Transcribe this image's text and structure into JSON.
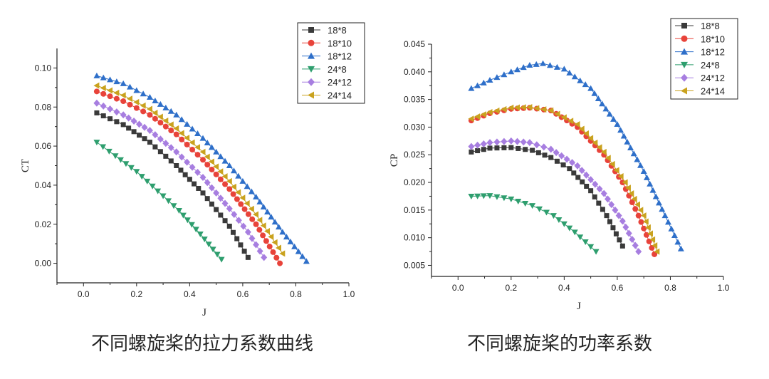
{
  "captions": {
    "left": "不同螺旋桨的拉力系数曲线",
    "right": "不同螺旋桨的功率系数"
  },
  "chart_data": [
    {
      "type": "line",
      "xlabel": "J",
      "ylabel": "CT",
      "xlim": [
        -0.1,
        1.0
      ],
      "ylim": [
        -0.01,
        0.11
      ],
      "xticks": [
        "0.0",
        "0.2",
        "0.4",
        "0.6",
        "0.8",
        "1.0"
      ],
      "yticks": [
        "0.00",
        "0.02",
        "0.04",
        "0.06",
        "0.08",
        "0.10"
      ],
      "legend": "top-right",
      "grid": false,
      "series": [
        {
          "name": "18*8",
          "color": "#3a3a3a",
          "marker": "square",
          "x": [
            0.05,
            0.15,
            0.25,
            0.35,
            0.45,
            0.55,
            0.62
          ],
          "y": [
            0.077,
            0.071,
            0.062,
            0.05,
            0.036,
            0.019,
            0.003
          ]
        },
        {
          "name": "18*10",
          "color": "#e8433a",
          "marker": "circle",
          "x": [
            0.05,
            0.15,
            0.25,
            0.35,
            0.45,
            0.55,
            0.65,
            0.74
          ],
          "y": [
            0.088,
            0.083,
            0.076,
            0.066,
            0.053,
            0.038,
            0.02,
            0.0
          ]
        },
        {
          "name": "18*12",
          "color": "#2e6fc9",
          "marker": "triangle-up",
          "x": [
            0.05,
            0.15,
            0.25,
            0.35,
            0.45,
            0.55,
            0.65,
            0.75,
            0.84
          ],
          "y": [
            0.096,
            0.092,
            0.085,
            0.076,
            0.064,
            0.05,
            0.034,
            0.016,
            0.001
          ]
        },
        {
          "name": "24*8",
          "color": "#2e9e6e",
          "marker": "triangle-down",
          "x": [
            0.05,
            0.12,
            0.2,
            0.28,
            0.36,
            0.44,
            0.52
          ],
          "y": [
            0.062,
            0.055,
            0.047,
            0.037,
            0.027,
            0.015,
            0.002
          ]
        },
        {
          "name": "24*12",
          "color": "#a77ee0",
          "marker": "diamond",
          "x": [
            0.05,
            0.15,
            0.25,
            0.35,
            0.45,
            0.55,
            0.62,
            0.68
          ],
          "y": [
            0.082,
            0.076,
            0.068,
            0.057,
            0.044,
            0.028,
            0.016,
            0.003
          ]
        },
        {
          "name": "24*14",
          "color": "#c9a21e",
          "marker": "triangle-left",
          "x": [
            0.05,
            0.15,
            0.25,
            0.35,
            0.45,
            0.55,
            0.65,
            0.75
          ],
          "y": [
            0.091,
            0.086,
            0.079,
            0.069,
            0.057,
            0.042,
            0.025,
            0.005
          ]
        }
      ]
    },
    {
      "type": "line",
      "xlabel": "J",
      "ylabel": "CP",
      "xlim": [
        -0.1,
        1.0
      ],
      "ylim": [
        0.003,
        0.045
      ],
      "xticks": [
        "0.0",
        "0.2",
        "0.4",
        "0.6",
        "0.8",
        "1.0"
      ],
      "yticks": [
        "0.005",
        "0.010",
        "0.015",
        "0.020",
        "0.025",
        "0.030",
        "0.035",
        "0.040",
        "0.045"
      ],
      "legend": "top-right",
      "grid": false,
      "series": [
        {
          "name": "18*8",
          "color": "#3a3a3a",
          "marker": "square",
          "x": [
            0.05,
            0.12,
            0.2,
            0.28,
            0.35,
            0.42,
            0.5,
            0.56,
            0.62
          ],
          "y": [
            0.0255,
            0.0262,
            0.0263,
            0.0258,
            0.0245,
            0.0225,
            0.0185,
            0.014,
            0.0085
          ]
        },
        {
          "name": "18*10",
          "color": "#e8433a",
          "marker": "circle",
          "x": [
            0.05,
            0.12,
            0.2,
            0.27,
            0.35,
            0.45,
            0.55,
            0.62,
            0.68,
            0.74
          ],
          "y": [
            0.0312,
            0.0325,
            0.0333,
            0.0335,
            0.033,
            0.03,
            0.025,
            0.02,
            0.014,
            0.007
          ]
        },
        {
          "name": "18*12",
          "color": "#2e6fc9",
          "marker": "triangle-up",
          "x": [
            0.05,
            0.12,
            0.2,
            0.27,
            0.32,
            0.4,
            0.5,
            0.6,
            0.7,
            0.78,
            0.84
          ],
          "y": [
            0.037,
            0.0385,
            0.04,
            0.0412,
            0.0415,
            0.0405,
            0.037,
            0.0305,
            0.022,
            0.014,
            0.008
          ]
        },
        {
          "name": "24*8",
          "color": "#2e9e6e",
          "marker": "triangle-down",
          "x": [
            0.05,
            0.12,
            0.2,
            0.28,
            0.36,
            0.44,
            0.52
          ],
          "y": [
            0.0175,
            0.0176,
            0.017,
            0.0158,
            0.014,
            0.011,
            0.0075
          ]
        },
        {
          "name": "24*12",
          "color": "#a77ee0",
          "marker": "diamond",
          "x": [
            0.05,
            0.12,
            0.2,
            0.27,
            0.35,
            0.45,
            0.55,
            0.62,
            0.68
          ],
          "y": [
            0.0265,
            0.0272,
            0.0275,
            0.0272,
            0.026,
            0.023,
            0.018,
            0.013,
            0.0075
          ]
        },
        {
          "name": "24*14",
          "color": "#c9a21e",
          "marker": "triangle-left",
          "x": [
            0.05,
            0.12,
            0.2,
            0.27,
            0.35,
            0.45,
            0.55,
            0.63,
            0.7,
            0.75
          ],
          "y": [
            0.0315,
            0.0327,
            0.0335,
            0.0336,
            0.033,
            0.0305,
            0.0255,
            0.02,
            0.014,
            0.0075
          ]
        }
      ]
    }
  ]
}
